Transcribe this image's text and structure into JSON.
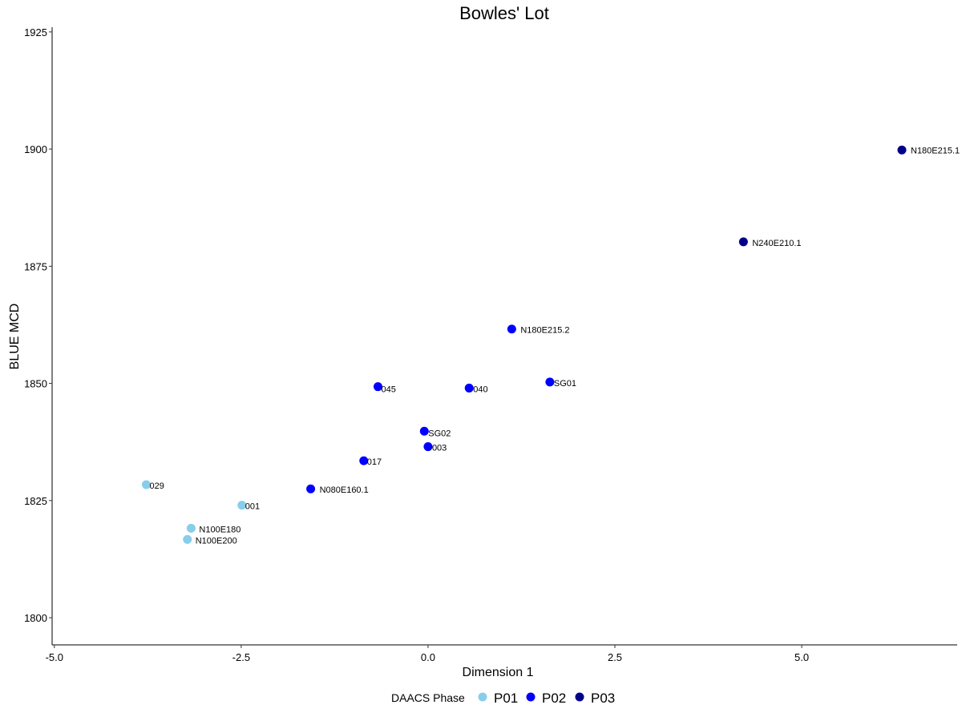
{
  "chart_data": {
    "type": "scatter",
    "title": "Bowles' Lot",
    "xlabel": "Dimension 1",
    "ylabel": "BLUE MCD",
    "xlim": [
      -5.03,
      7.08
    ],
    "ylim": [
      1794.2,
      1926
    ],
    "xticks": [
      -5.0,
      -2.5,
      0.0,
      2.5,
      5.0
    ],
    "xtick_labels": [
      "-5.0",
      "-2.5",
      "0.0",
      "2.5",
      "5.0"
    ],
    "yticks": [
      1800,
      1825,
      1850,
      1875,
      1900,
      1925
    ],
    "ytick_labels": [
      "1800",
      "1825",
      "1850",
      "1875",
      "1900",
      "1925"
    ],
    "grid": false,
    "legend": {
      "title": "DAACS Phase",
      "placement": "bottom",
      "entries": [
        {
          "name": "P01",
          "color": "#87CEEB"
        },
        {
          "name": "P02",
          "color": "#0000FF"
        },
        {
          "name": "P03",
          "color": "#00008B"
        }
      ]
    },
    "points": [
      {
        "label": "N180E215.1",
        "x": 6.34,
        "y": 1899.8,
        "phase": "P03"
      },
      {
        "label": "N240E210.1",
        "x": 4.22,
        "y": 1880.2,
        "phase": "P03"
      },
      {
        "label": "N180E215.2",
        "x": 1.12,
        "y": 1861.6,
        "phase": "P02"
      },
      {
        "label": "SG01",
        "x": 1.63,
        "y": 1850.3,
        "phase": "P02"
      },
      {
        "label": "040",
        "x": 0.55,
        "y": 1849.0,
        "phase": "P02"
      },
      {
        "label": "045",
        "x": -0.67,
        "y": 1849.3,
        "phase": "P02"
      },
      {
        "label": "SG02",
        "x": -0.05,
        "y": 1839.8,
        "phase": "P02"
      },
      {
        "label": "003",
        "x": 0.0,
        "y": 1836.5,
        "phase": "P02"
      },
      {
        "label": "017",
        "x": -0.86,
        "y": 1833.5,
        "phase": "P02"
      },
      {
        "label": "N080E160.1",
        "x": -1.57,
        "y": 1827.5,
        "phase": "P02"
      },
      {
        "label": "029",
        "x": -3.77,
        "y": 1828.4,
        "phase": "P01"
      },
      {
        "label": "001",
        "x": -2.49,
        "y": 1824.0,
        "phase": "P01"
      },
      {
        "label": "N100E180",
        "x": -3.17,
        "y": 1819.1,
        "phase": "P01"
      },
      {
        "label": "N100E200",
        "x": -3.22,
        "y": 1816.7,
        "phase": "P01"
      }
    ]
  }
}
